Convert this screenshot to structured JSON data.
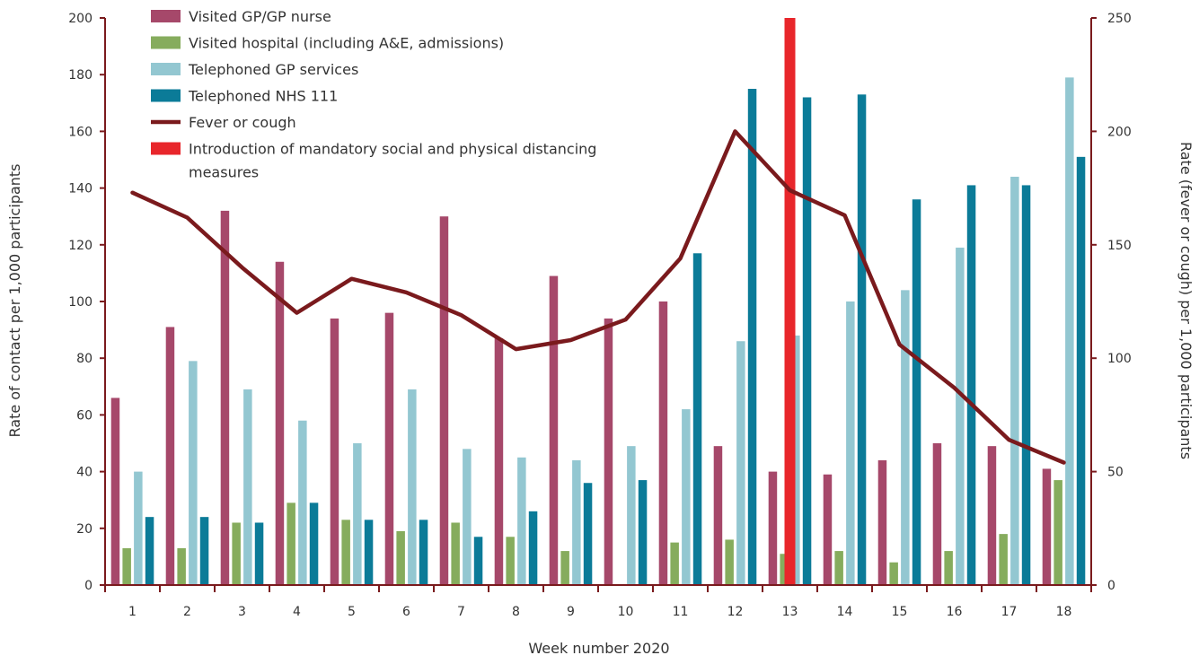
{
  "chart_data": {
    "type": "bar",
    "xlabel": "Week number 2020",
    "ylabel": "Rate of contact per 1,000 participants",
    "y2label": "Rate (fever or cough) per 1,000 participants",
    "ylim": [
      0,
      200
    ],
    "y2lim": [
      0,
      250
    ],
    "yticks": [
      "0",
      "20",
      "40",
      "60",
      "80",
      "100",
      "120",
      "140",
      "160",
      "180",
      "200"
    ],
    "y2ticks": [
      "0",
      "50",
      "100",
      "150",
      "200",
      "250"
    ],
    "categories": [
      "1",
      "2",
      "3",
      "4",
      "5",
      "6",
      "7",
      "8",
      "9",
      "10",
      "11",
      "12",
      "13",
      "14",
      "15",
      "16",
      "17",
      "18"
    ],
    "grid": false,
    "legend_position": "top-left",
    "series": [
      {
        "name": "Visited GP/GP nurse",
        "type": "bar",
        "axis": "left",
        "color": "#a6486a",
        "values": [
          66,
          91,
          132,
          114,
          94,
          96,
          130,
          87,
          109,
          94,
          100,
          49,
          40,
          39,
          44,
          50,
          49,
          41
        ]
      },
      {
        "name": "Visited hospital (including A&E, admissions)",
        "type": "bar",
        "axis": "left",
        "color": "#86ac5d",
        "values": [
          13,
          13,
          22,
          29,
          23,
          19,
          22,
          17,
          12,
          0,
          15,
          16,
          11,
          12,
          8,
          12,
          18,
          37
        ]
      },
      {
        "name": "Telephoned GP services",
        "type": "bar",
        "axis": "left",
        "color": "#93c7d1",
        "values": [
          40,
          79,
          69,
          58,
          50,
          69,
          48,
          45,
          44,
          49,
          62,
          86,
          88,
          100,
          104,
          119,
          144,
          179
        ]
      },
      {
        "name": "Telephoned NHS 111",
        "type": "bar",
        "axis": "left",
        "color": "#0b7b98",
        "values": [
          24,
          24,
          22,
          29,
          23,
          23,
          17,
          26,
          36,
          37,
          117,
          175,
          172,
          173,
          136,
          141,
          141,
          151
        ]
      },
      {
        "name": "Fever or cough",
        "type": "line",
        "axis": "right",
        "color": "#7a1a1d",
        "values": [
          173,
          162,
          140,
          120,
          135,
          129,
          119,
          104,
          108,
          117,
          144,
          200,
          174,
          163,
          106,
          87,
          64,
          54
        ]
      }
    ],
    "marker": {
      "name": "Introduction of mandatory social and physical distancing measures",
      "label_lines": [
        "Introduction of mandatory social and physical distancing",
        "measures"
      ],
      "category": "13",
      "color": "#e8262b"
    }
  }
}
